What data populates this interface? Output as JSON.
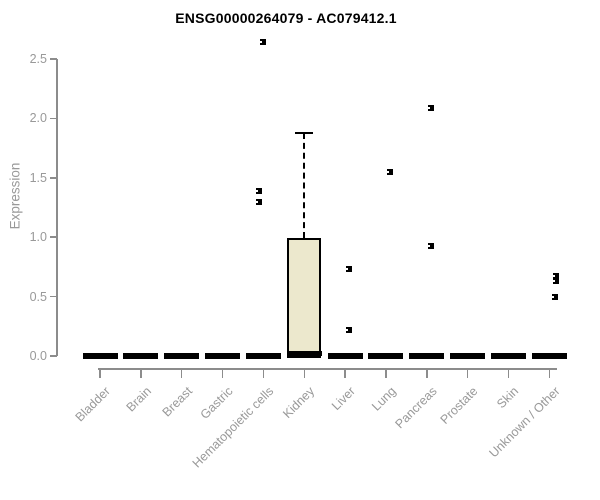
{
  "title": "ENSG00000264079 - AC079412.1",
  "chart_data": {
    "type": "boxplot",
    "title": "ENSG00000264079 - AC079412.1",
    "ylabel": "Expression",
    "xlabel": "",
    "ylim": [
      0,
      2.65
    ],
    "yticks": [
      "0.0",
      "0.5",
      "1.0",
      "1.5",
      "2.0",
      "2.5"
    ],
    "grid": false,
    "legend": "none",
    "categories": [
      "Bladder",
      "Brain",
      "Breast",
      "Gastric",
      "Hematopoietic cells",
      "Kidney",
      "Liver",
      "Lung",
      "Pancreas",
      "Prostate",
      "Skin",
      "Unknown / Other"
    ],
    "series": [
      {
        "name": "Bladder",
        "low": 0,
        "q1": 0,
        "median": 0,
        "q3": 0,
        "high": 0,
        "outliers": []
      },
      {
        "name": "Brain",
        "low": 0,
        "q1": 0,
        "median": 0,
        "q3": 0,
        "high": 0,
        "outliers": []
      },
      {
        "name": "Breast",
        "low": 0,
        "q1": 0,
        "median": 0,
        "q3": 0,
        "high": 0,
        "outliers": []
      },
      {
        "name": "Gastric",
        "low": 0,
        "q1": 0,
        "median": 0,
        "q3": 0,
        "high": 0,
        "outliers": []
      },
      {
        "name": "Hematopoietic cells",
        "low": 0,
        "q1": 0,
        "median": 0,
        "q3": 0,
        "high": 0,
        "outliers": [
          {
            "value": 2.64,
            "dx": 0
          },
          {
            "value": 1.39,
            "dx": -4
          },
          {
            "value": 1.3,
            "dx": -4
          }
        ]
      },
      {
        "name": "Kidney",
        "low": 0,
        "q1": 0,
        "median": 0.02,
        "q3": 0.99,
        "high": 1.88,
        "outliers": []
      },
      {
        "name": "Liver",
        "low": 0,
        "q1": 0,
        "median": 0,
        "q3": 0,
        "high": 0,
        "outliers": [
          {
            "value": 0.73,
            "dx": 4
          },
          {
            "value": 0.22,
            "dx": 4
          }
        ]
      },
      {
        "name": "Lung",
        "low": 0,
        "q1": 0,
        "median": 0,
        "q3": 0,
        "high": 0,
        "outliers": [
          {
            "value": 1.55,
            "dx": 4
          }
        ]
      },
      {
        "name": "Pancreas",
        "low": 0,
        "q1": 0,
        "median": 0,
        "q3": 0,
        "high": 0,
        "outliers": [
          {
            "value": 2.09,
            "dx": 4
          },
          {
            "value": 0.93,
            "dx": 4
          }
        ]
      },
      {
        "name": "Prostate",
        "low": 0,
        "q1": 0,
        "median": 0,
        "q3": 0,
        "high": 0,
        "outliers": []
      },
      {
        "name": "Skin",
        "low": 0,
        "q1": 0,
        "median": 0,
        "q3": 0,
        "high": 0,
        "outliers": []
      },
      {
        "name": "Unknown / Other",
        "low": 0,
        "q1": 0,
        "median": 0,
        "q3": 0,
        "high": 0,
        "outliers": [
          {
            "value": 0.67,
            "dx": 7
          },
          {
            "value": 0.63,
            "dx": 7
          },
          {
            "value": 0.5,
            "dx": 6
          }
        ]
      }
    ],
    "colors": {
      "box_fill": "#ece8cd",
      "box_border": "#000000",
      "median": "#000000",
      "outlier": "#000000",
      "axis": "#8c8c8c",
      "text": "#999999",
      "title": "#000000"
    }
  }
}
